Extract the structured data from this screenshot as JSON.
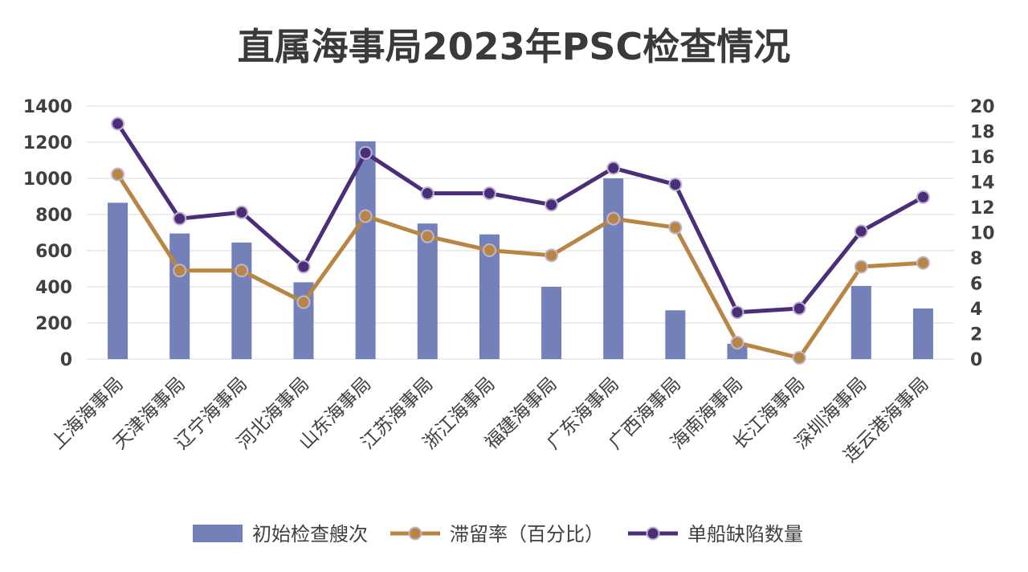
{
  "chart_data": {
    "title": "直属海事局2023年PSC检查情况",
    "type": "bar+line",
    "categories": [
      "上海海事局",
      "天津海事局",
      "辽宁海事局",
      "河北海事局",
      "山东海事局",
      "江苏海事局",
      "浙江海事局",
      "福建海事局",
      "广东海事局",
      "广西海事局",
      "海南海事局",
      "长江海事局",
      "深圳海事局",
      "连云港海事局"
    ],
    "left_axis": {
      "min": 0,
      "max": 1400,
      "step": 200,
      "ticks": [
        "0",
        "200",
        "400",
        "600",
        "800",
        "1000",
        "1200",
        "1400"
      ]
    },
    "right_axis": {
      "min": 0,
      "max": 20,
      "step": 2,
      "ticks": [
        "0",
        "2",
        "4",
        "6",
        "8",
        "10",
        "12",
        "14",
        "16",
        "18",
        "20"
      ]
    },
    "series": [
      {
        "name": "初始检查艘次",
        "type": "bar",
        "axis": "left",
        "color": "#7480b8",
        "values": [
          865,
          695,
          645,
          425,
          1205,
          750,
          690,
          400,
          1000,
          270,
          85,
          0,
          405,
          280
        ]
      },
      {
        "name": "滞留率（百分比）",
        "type": "line",
        "axis": "right",
        "color": "#b98545",
        "values": [
          14.6,
          7.0,
          7.0,
          4.5,
          11.3,
          9.7,
          8.6,
          8.2,
          11.1,
          10.4,
          1.3,
          0.1,
          7.3,
          7.6
        ]
      },
      {
        "name": "单船缺陷数量",
        "type": "line",
        "axis": "right",
        "color": "#4b2d7a",
        "values": [
          18.6,
          11.1,
          11.6,
          7.3,
          16.3,
          13.1,
          13.1,
          12.2,
          15.1,
          13.8,
          3.7,
          4.0,
          10.1,
          12.8
        ]
      }
    ],
    "grid": true,
    "legend_position": "bottom"
  }
}
